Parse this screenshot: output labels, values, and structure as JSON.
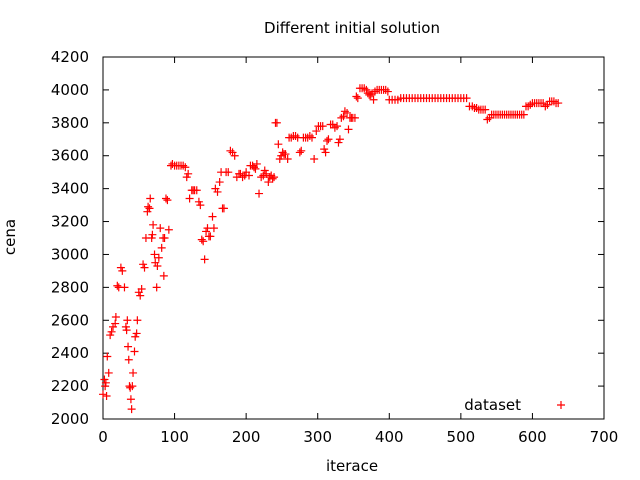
{
  "chart_data": {
    "type": "scatter",
    "title": "Different initial solution",
    "xlabel": "iterace",
    "ylabel": "cena",
    "xlim": [
      0,
      700
    ],
    "ylim": [
      2000,
      4200
    ],
    "xticks": [
      0,
      100,
      200,
      300,
      400,
      500,
      600,
      700
    ],
    "yticks": [
      2000,
      2200,
      2400,
      2600,
      2800,
      3000,
      3200,
      3400,
      3600,
      3800,
      4000,
      4200
    ],
    "grid": false,
    "legend_position": "bottom-right",
    "marker": "+",
    "series": [
      {
        "name": "dataset",
        "color": "#ff0000",
        "points": [
          [
            0,
            2150
          ],
          [
            2,
            2240
          ],
          [
            3,
            2200
          ],
          [
            4,
            2220
          ],
          [
            5,
            2140
          ],
          [
            6,
            2380
          ],
          [
            8,
            2280
          ],
          [
            10,
            2510
          ],
          [
            12,
            2530
          ],
          [
            14,
            2560
          ],
          [
            17,
            2580
          ],
          [
            18,
            2620
          ],
          [
            20,
            2810
          ],
          [
            22,
            2800
          ],
          [
            25,
            2920
          ],
          [
            27,
            2900
          ],
          [
            30,
            2800
          ],
          [
            32,
            2560
          ],
          [
            33,
            2540
          ],
          [
            34,
            2600
          ],
          [
            35,
            2440
          ],
          [
            36,
            2360
          ],
          [
            37,
            2200
          ],
          [
            38,
            2190
          ],
          [
            39,
            2120
          ],
          [
            40,
            2060
          ],
          [
            41,
            2200
          ],
          [
            42,
            2280
          ],
          [
            44,
            2410
          ],
          [
            45,
            2500
          ],
          [
            47,
            2520
          ],
          [
            48,
            2600
          ],
          [
            50,
            2770
          ],
          [
            52,
            2750
          ],
          [
            54,
            2790
          ],
          [
            56,
            2940
          ],
          [
            58,
            2920
          ],
          [
            60,
            3100
          ],
          [
            62,
            3260
          ],
          [
            63,
            3290
          ],
          [
            65,
            3280
          ],
          [
            66,
            3340
          ],
          [
            68,
            3100
          ],
          [
            69,
            3120
          ],
          [
            70,
            3180
          ],
          [
            72,
            3000
          ],
          [
            73,
            2950
          ],
          [
            75,
            2800
          ],
          [
            76,
            2930
          ],
          [
            78,
            2980
          ],
          [
            80,
            3160
          ],
          [
            82,
            3040
          ],
          [
            84,
            3100
          ],
          [
            85,
            2870
          ],
          [
            86,
            3100
          ],
          [
            88,
            3340
          ],
          [
            90,
            3330
          ],
          [
            92,
            3150
          ],
          [
            95,
            3540
          ],
          [
            97,
            3550
          ],
          [
            100,
            3540
          ],
          [
            103,
            3540
          ],
          [
            106,
            3540
          ],
          [
            109,
            3540
          ],
          [
            112,
            3540
          ],
          [
            115,
            3530
          ],
          [
            117,
            3470
          ],
          [
            119,
            3490
          ],
          [
            121,
            3340
          ],
          [
            124,
            3390
          ],
          [
            126,
            3390
          ],
          [
            128,
            3390
          ],
          [
            131,
            3390
          ],
          [
            134,
            3320
          ],
          [
            136,
            3300
          ],
          [
            138,
            3090
          ],
          [
            140,
            3080
          ],
          [
            142,
            2970
          ],
          [
            144,
            3140
          ],
          [
            146,
            3160
          ],
          [
            148,
            3110
          ],
          [
            150,
            3110
          ],
          [
            153,
            3230
          ],
          [
            155,
            3160
          ],
          [
            157,
            3400
          ],
          [
            160,
            3380
          ],
          [
            163,
            3440
          ],
          [
            165,
            3500
          ],
          [
            167,
            3280
          ],
          [
            169,
            3280
          ],
          [
            172,
            3500
          ],
          [
            175,
            3500
          ],
          [
            178,
            3630
          ],
          [
            181,
            3620
          ],
          [
            184,
            3600
          ],
          [
            187,
            3470
          ],
          [
            190,
            3490
          ],
          [
            192,
            3490
          ],
          [
            195,
            3470
          ],
          [
            198,
            3480
          ],
          [
            200,
            3500
          ],
          [
            204,
            3480
          ],
          [
            206,
            3540
          ],
          [
            209,
            3540
          ],
          [
            211,
            3530
          ],
          [
            213,
            3520
          ],
          [
            215,
            3550
          ],
          [
            218,
            3370
          ],
          [
            221,
            3470
          ],
          [
            224,
            3480
          ],
          [
            226,
            3510
          ],
          [
            228,
            3490
          ],
          [
            231,
            3440
          ],
          [
            233,
            3470
          ],
          [
            235,
            3480
          ],
          [
            237,
            3460
          ],
          [
            239,
            3470
          ],
          [
            241,
            3800
          ],
          [
            243,
            3800
          ],
          [
            245,
            3670
          ],
          [
            247,
            3580
          ],
          [
            249,
            3600
          ],
          [
            251,
            3620
          ],
          [
            253,
            3610
          ],
          [
            255,
            3610
          ],
          [
            258,
            3580
          ],
          [
            260,
            3710
          ],
          [
            263,
            3710
          ],
          [
            266,
            3720
          ],
          [
            269,
            3720
          ],
          [
            272,
            3710
          ],
          [
            275,
            3620
          ],
          [
            277,
            3630
          ],
          [
            280,
            3710
          ],
          [
            283,
            3710
          ],
          [
            286,
            3710
          ],
          [
            289,
            3720
          ],
          [
            292,
            3710
          ],
          [
            295,
            3580
          ],
          [
            298,
            3750
          ],
          [
            301,
            3780
          ],
          [
            304,
            3780
          ],
          [
            307,
            3780
          ],
          [
            309,
            3640
          ],
          [
            311,
            3620
          ],
          [
            313,
            3690
          ],
          [
            315,
            3700
          ],
          [
            318,
            3790
          ],
          [
            321,
            3790
          ],
          [
            324,
            3770
          ],
          [
            327,
            3780
          ],
          [
            329,
            3680
          ],
          [
            331,
            3700
          ],
          [
            333,
            3830
          ],
          [
            336,
            3840
          ],
          [
            338,
            3870
          ],
          [
            341,
            3860
          ],
          [
            343,
            3760
          ],
          [
            345,
            3830
          ],
          [
            347,
            3830
          ],
          [
            349,
            3830
          ],
          [
            352,
            3830
          ],
          [
            354,
            3960
          ],
          [
            356,
            3950
          ],
          [
            359,
            4010
          ],
          [
            362,
            4010
          ],
          [
            365,
            4010
          ],
          [
            368,
            4000
          ],
          [
            370,
            3980
          ],
          [
            372,
            3970
          ],
          [
            374,
            3970
          ],
          [
            376,
            3980
          ],
          [
            378,
            3940
          ],
          [
            380,
            3990
          ],
          [
            383,
            4000
          ],
          [
            386,
            4000
          ],
          [
            389,
            4000
          ],
          [
            392,
            4000
          ],
          [
            395,
            4000
          ],
          [
            398,
            3990
          ],
          [
            400,
            3940
          ],
          [
            404,
            3940
          ],
          [
            408,
            3940
          ],
          [
            412,
            3940
          ],
          [
            416,
            3950
          ],
          [
            420,
            3950
          ],
          [
            424,
            3950
          ],
          [
            428,
            3950
          ],
          [
            432,
            3950
          ],
          [
            436,
            3950
          ],
          [
            440,
            3950
          ],
          [
            444,
            3950
          ],
          [
            448,
            3950
          ],
          [
            452,
            3950
          ],
          [
            456,
            3950
          ],
          [
            460,
            3950
          ],
          [
            464,
            3950
          ],
          [
            468,
            3950
          ],
          [
            472,
            3950
          ],
          [
            476,
            3950
          ],
          [
            480,
            3950
          ],
          [
            484,
            3950
          ],
          [
            488,
            3950
          ],
          [
            492,
            3950
          ],
          [
            496,
            3950
          ],
          [
            500,
            3950
          ],
          [
            504,
            3950
          ],
          [
            508,
            3950
          ],
          [
            512,
            3900
          ],
          [
            516,
            3900
          ],
          [
            519,
            3890
          ],
          [
            522,
            3890
          ],
          [
            525,
            3880
          ],
          [
            528,
            3880
          ],
          [
            531,
            3880
          ],
          [
            534,
            3880
          ],
          [
            537,
            3820
          ],
          [
            540,
            3830
          ],
          [
            543,
            3850
          ],
          [
            546,
            3850
          ],
          [
            549,
            3850
          ],
          [
            552,
            3850
          ],
          [
            555,
            3850
          ],
          [
            558,
            3850
          ],
          [
            561,
            3850
          ],
          [
            564,
            3850
          ],
          [
            567,
            3850
          ],
          [
            570,
            3850
          ],
          [
            573,
            3850
          ],
          [
            576,
            3850
          ],
          [
            579,
            3850
          ],
          [
            582,
            3850
          ],
          [
            585,
            3850
          ],
          [
            588,
            3850
          ],
          [
            591,
            3900
          ],
          [
            594,
            3900
          ],
          [
            597,
            3910
          ],
          [
            600,
            3920
          ],
          [
            603,
            3920
          ],
          [
            606,
            3920
          ],
          [
            609,
            3920
          ],
          [
            612,
            3920
          ],
          [
            615,
            3920
          ],
          [
            618,
            3900
          ],
          [
            621,
            3910
          ],
          [
            624,
            3930
          ],
          [
            627,
            3930
          ],
          [
            630,
            3930
          ],
          [
            633,
            3920
          ],
          [
            636,
            3920
          ]
        ]
      }
    ]
  }
}
